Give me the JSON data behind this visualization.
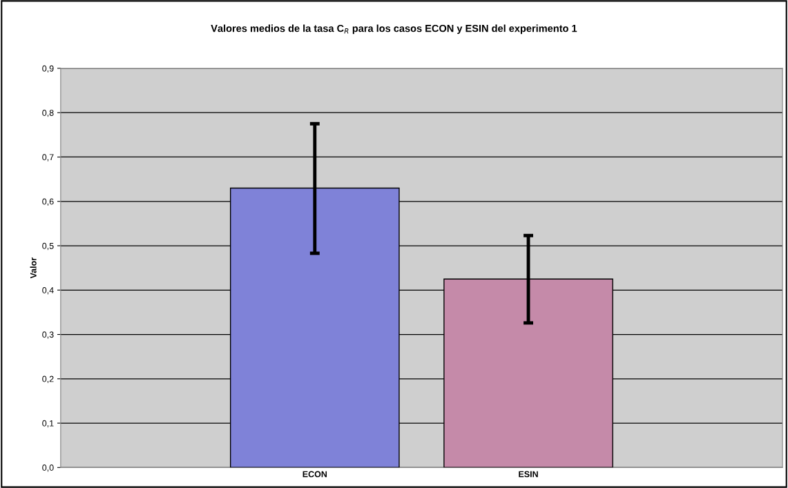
{
  "chart_data": {
    "type": "bar",
    "title": "Valores medios de la tasa C$_{R}$ para los casos ECON y ESIN del experimento 1",
    "ylabel": "Valor",
    "categories": [
      "ECON",
      "ESIN"
    ],
    "values": [
      0.63,
      0.425
    ],
    "colors": [
      "#7f82d8",
      "#c58aa9"
    ],
    "errors": [
      [
        0.483,
        0.775
      ],
      [
        0.326,
        0.523
      ]
    ],
    "ylim": [
      0,
      0.9
    ],
    "yticks": [
      {
        "value": 0,
        "label": "0,0"
      },
      {
        "value": 0.1,
        "label": "0,1"
      },
      {
        "value": 0.2,
        "label": "0,2"
      },
      {
        "value": 0.3,
        "label": "0,3"
      },
      {
        "value": 0.4,
        "label": "0,4"
      },
      {
        "value": 0.5,
        "label": "0,5"
      },
      {
        "value": 0.6,
        "label": "0,6"
      },
      {
        "value": 0.7,
        "label": "0,7"
      },
      {
        "value": 0.8,
        "label": "0,8"
      },
      {
        "value": 0.9,
        "label": "0,9"
      }
    ],
    "grid": "y"
  }
}
